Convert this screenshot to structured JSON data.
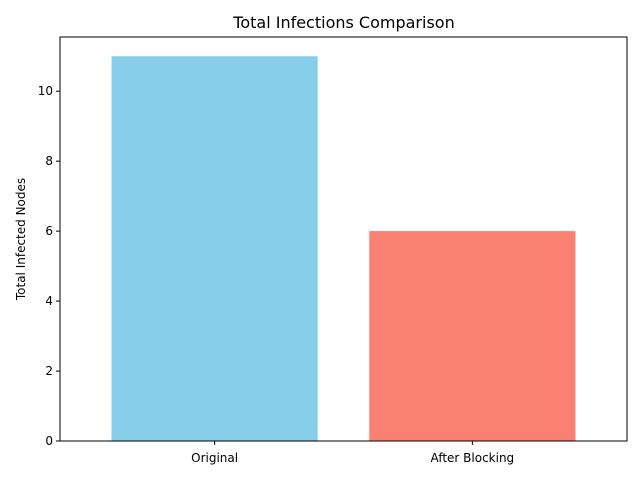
{
  "chart_data": {
    "type": "bar",
    "title": "Total Infections Comparison",
    "xlabel": "",
    "ylabel": "Total Infected Nodes",
    "categories": [
      "Original",
      "After Blocking"
    ],
    "values": [
      11,
      6
    ],
    "colors": [
      "#87CEEB",
      "#FA8072"
    ],
    "ylim": [
      0,
      11.55
    ],
    "yticks": [
      0,
      2,
      4,
      6,
      8,
      10
    ],
    "ytick_labels": [
      "0",
      "2",
      "4",
      "6",
      "8",
      "10"
    ],
    "grid": false
  }
}
